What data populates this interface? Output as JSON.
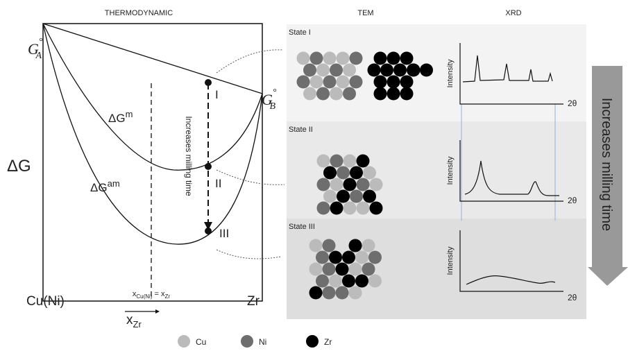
{
  "headers": {
    "thermodynamic": "THERMODYNAMIC",
    "tem": "TEM",
    "xrd": "XRD"
  },
  "plot": {
    "y_label": "ΔG",
    "ga": {
      "main": "G",
      "sup": "°",
      "sub": "A"
    },
    "gb": {
      "main": "G",
      "sup": "°",
      "sub": "B"
    },
    "dgm": {
      "main": "ΔG",
      "sup": "m"
    },
    "dgam": {
      "main": "ΔG",
      "sup": "am"
    },
    "points": [
      "I",
      "II",
      "III"
    ],
    "arrow_label": "Increases milling time",
    "x_left": "Cu(Ni)",
    "x_right": "Zr",
    "composition": {
      "x1": "x",
      "sub1": "Cu(Ni)",
      "eq": " = ",
      "x2": "x",
      "sub2": "Zr"
    },
    "x_axis": {
      "main": "x",
      "sub": "Zr"
    }
  },
  "states": [
    {
      "title": "State I",
      "y_label": "Intensity",
      "x_label": "2θ"
    },
    {
      "title": "State II",
      "y_label": "Intensity",
      "x_label": "2θ"
    },
    {
      "title": "State III",
      "y_label": "Intensity",
      "x_label": "2θ"
    }
  ],
  "side_arrow": "Increases milling time",
  "legend": [
    "Cu",
    "Ni",
    "Zr"
  ]
}
